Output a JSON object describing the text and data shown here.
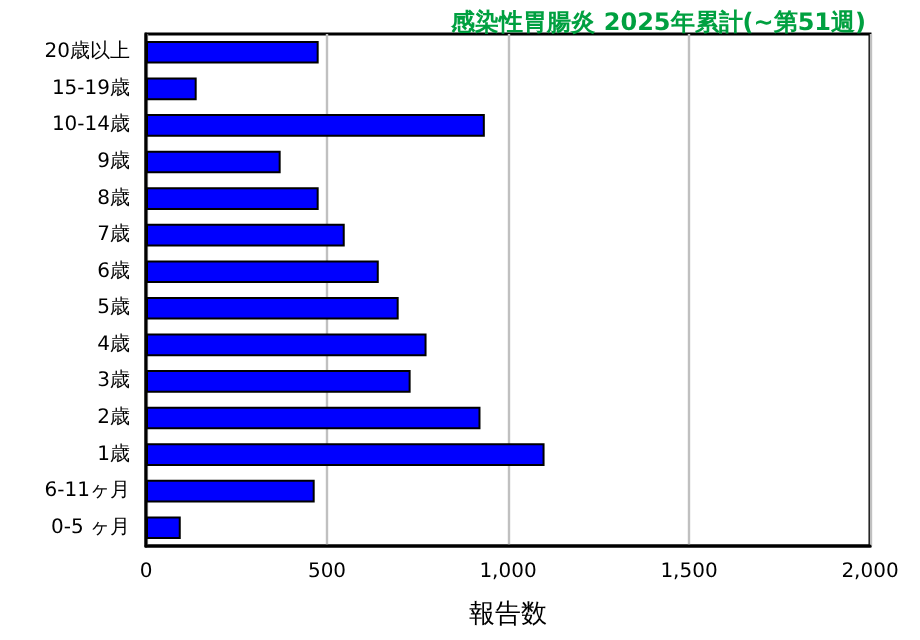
{
  "chart_data": {
    "type": "bar",
    "orientation": "horizontal",
    "title": "感染性胃腸炎 2025年累計(~第51週)",
    "xlabel": "報告数",
    "categories": [
      "20歳以上",
      "15-19歳",
      "10-14歳",
      "9歳",
      "8歳",
      "7歳",
      "6歳",
      "5歳",
      "4歳",
      "3歳",
      "2歳",
      "1歳",
      "6-11ヶ月",
      "0-5 ヶ月"
    ],
    "values": [
      477,
      140,
      936,
      372,
      477,
      549,
      643,
      698,
      775,
      731,
      924,
      1101,
      466,
      96
    ],
    "color": "#0000ff",
    "xlim": [
      0,
      2000
    ],
    "xticks": [
      0,
      {
        "value": 500,
        "label": "500"
      },
      {
        "value": 1000,
        "label": "1,000"
      },
      {
        "value": 1500,
        "label": "1,500"
      },
      {
        "value": 2000,
        "label": "2,000"
      }
    ],
    "grid": "x"
  }
}
